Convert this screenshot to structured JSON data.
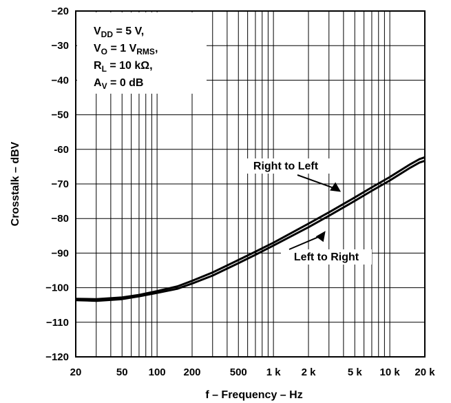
{
  "chart_data": {
    "type": "line",
    "title": "",
    "xlabel": "f – Frequency – Hz",
    "ylabel": "Crosstalk – dBV",
    "x_scale": "log",
    "xlim": [
      20,
      20000
    ],
    "ylim": [
      -120,
      -20
    ],
    "grid": true,
    "x_ticks": [
      20,
      50,
      100,
      200,
      500,
      1000,
      2000,
      5000,
      10000,
      20000
    ],
    "x_tick_labels": [
      "20",
      "50",
      "100",
      "200",
      "500",
      "1 k",
      "2 k",
      "5 k",
      "10 k",
      "20 k"
    ],
    "y_ticks": [
      -120,
      -110,
      -100,
      -90,
      -80,
      -70,
      -60,
      -50,
      -40,
      -30,
      -20
    ],
    "y_tick_labels": [
      "−120",
      "−110",
      "−100",
      "−90",
      "−80",
      "−70",
      "-60",
      "−50",
      "−40",
      "−30",
      "−20"
    ],
    "conditions": [
      {
        "main": "V",
        "sub": "DD",
        "rest": " = 5 V,"
      },
      {
        "main": "V",
        "sub": "O",
        "rest": " = 1 V",
        "sub2": "RMS",
        "rest2": ","
      },
      {
        "main": "R",
        "sub": "L",
        "rest": " = 10 kΩ,"
      },
      {
        "main": "A",
        "sub": "V",
        "rest": " = 0 dB"
      }
    ],
    "series": [
      {
        "name": "Right to Left",
        "x": [
          20,
          30,
          50,
          70,
          100,
          150,
          200,
          300,
          500,
          700,
          1000,
          2000,
          3000,
          5000,
          7000,
          10000,
          15000,
          18000,
          20000
        ],
        "y": [
          -103.2,
          -103.3,
          -102.8,
          -102.1,
          -101.0,
          -99.6,
          -98.0,
          -95.6,
          -92.0,
          -89.6,
          -87.0,
          -81.5,
          -78.2,
          -73.9,
          -71.0,
          -68.0,
          -64.3,
          -62.8,
          -62.3
        ]
      },
      {
        "name": "Left to Right",
        "x": [
          20,
          30,
          50,
          70,
          100,
          150,
          200,
          300,
          500,
          700,
          1000,
          2000,
          3000,
          5000,
          7000,
          10000,
          15000,
          18000,
          20000
        ],
        "y": [
          -103.6,
          -103.8,
          -103.3,
          -102.5,
          -101.5,
          -100.3,
          -98.8,
          -96.5,
          -92.9,
          -90.5,
          -87.8,
          -82.5,
          -79.2,
          -74.9,
          -72.0,
          -69.0,
          -65.3,
          -63.8,
          -63.3
        ]
      }
    ],
    "annotations": [
      {
        "text": "Right to Left",
        "series": "Right to Left",
        "x": 3800,
        "y": -72.3
      },
      {
        "text": "Left to Right",
        "series": "Left to Right",
        "x": 2800,
        "y": -83.6
      }
    ]
  }
}
